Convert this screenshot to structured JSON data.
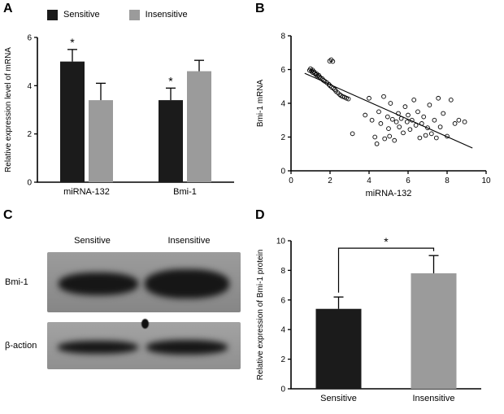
{
  "panels": {
    "a": "A",
    "b": "B",
    "c": "C",
    "d": "D"
  },
  "colors": {
    "sensitive": "#1b1b1b",
    "insensitive": "#9b9b9b",
    "axis": "#000000"
  },
  "blot": {
    "col_labels": [
      "Sensitive",
      "Insensitive"
    ],
    "row_labels": [
      "Bmi-1",
      "β-action"
    ]
  },
  "chart_data": [
    {
      "id": "panelA",
      "type": "bar",
      "title": "",
      "ylabel": "Relative expression level of mRNA",
      "ylim": [
        0,
        6
      ],
      "yticks": [
        0,
        2,
        4,
        6
      ],
      "categories": [
        "miRNA-132",
        "Bmi-1"
      ],
      "legend_position": "top",
      "series": [
        {
          "name": "Sensitive",
          "color": "#1b1b1b",
          "values": [
            5.0,
            3.4
          ],
          "errors": [
            0.5,
            0.5
          ],
          "sig": [
            "*",
            "*"
          ]
        },
        {
          "name": "Insensitive",
          "color": "#9b9b9b",
          "values": [
            3.4,
            4.6
          ],
          "errors": [
            0.7,
            0.45
          ],
          "sig": [
            "",
            ""
          ]
        }
      ]
    },
    {
      "id": "panelB",
      "type": "scatter",
      "xlabel": "miRNA-132",
      "ylabel": "Bmi-1 mRNA",
      "xlim": [
        0,
        10
      ],
      "ylim": [
        0,
        8
      ],
      "xticks": [
        0,
        2,
        4,
        6,
        8,
        10
      ],
      "yticks": [
        0,
        2,
        4,
        6,
        8
      ],
      "marker": "open-circle",
      "trendline": [
        0.7,
        5.78,
        9.3,
        1.35
      ],
      "points": [
        [
          0.95,
          5.95
        ],
        [
          1.0,
          6.05
        ],
        [
          1.05,
          5.9
        ],
        [
          1.1,
          5.97
        ],
        [
          1.12,
          5.82
        ],
        [
          1.18,
          5.87
        ],
        [
          1.22,
          5.78
        ],
        [
          1.27,
          5.7
        ],
        [
          1.32,
          5.74
        ],
        [
          1.36,
          5.62
        ],
        [
          1.42,
          5.66
        ],
        [
          1.47,
          5.56
        ],
        [
          1.52,
          5.5
        ],
        [
          1.6,
          5.46
        ],
        [
          1.66,
          5.36
        ],
        [
          1.74,
          5.3
        ],
        [
          1.84,
          5.22
        ],
        [
          1.94,
          5.12
        ],
        [
          2.0,
          5.04
        ],
        [
          2.08,
          4.96
        ],
        [
          2.16,
          4.9
        ],
        [
          2.24,
          4.82
        ],
        [
          2.3,
          4.72
        ],
        [
          2.4,
          4.62
        ],
        [
          2.5,
          4.52
        ],
        [
          2.56,
          4.46
        ],
        [
          2.64,
          4.4
        ],
        [
          2.74,
          4.36
        ],
        [
          2.84,
          4.3
        ],
        [
          2.94,
          4.26
        ],
        [
          1.98,
          6.5
        ],
        [
          2.06,
          6.58
        ],
        [
          2.14,
          6.48
        ],
        [
          3.15,
          2.2
        ],
        [
          3.8,
          3.3
        ],
        [
          4.0,
          4.3
        ],
        [
          4.15,
          3.0
        ],
        [
          4.3,
          2.0
        ],
        [
          4.4,
          1.6
        ],
        [
          4.5,
          3.5
        ],
        [
          4.6,
          2.8
        ],
        [
          4.75,
          4.4
        ],
        [
          4.8,
          1.9
        ],
        [
          4.95,
          3.2
        ],
        [
          5.0,
          2.5
        ],
        [
          5.05,
          2.05
        ],
        [
          5.1,
          4.0
        ],
        [
          5.2,
          3.05
        ],
        [
          5.3,
          1.8
        ],
        [
          5.4,
          2.9
        ],
        [
          5.5,
          3.4
        ],
        [
          5.55,
          2.6
        ],
        [
          5.65,
          3.1
        ],
        [
          5.75,
          2.25
        ],
        [
          5.85,
          3.8
        ],
        [
          5.95,
          2.9
        ],
        [
          6.0,
          3.3
        ],
        [
          6.1,
          2.45
        ],
        [
          6.2,
          3.0
        ],
        [
          6.3,
          4.2
        ],
        [
          6.4,
          2.7
        ],
        [
          6.5,
          3.5
        ],
        [
          6.6,
          1.95
        ],
        [
          6.7,
          2.8
        ],
        [
          6.8,
          3.2
        ],
        [
          6.9,
          2.1
        ],
        [
          7.0,
          2.55
        ],
        [
          7.1,
          3.9
        ],
        [
          7.2,
          2.2
        ],
        [
          7.35,
          3.0
        ],
        [
          7.45,
          1.95
        ],
        [
          7.55,
          4.3
        ],
        [
          7.65,
          2.6
        ],
        [
          7.8,
          3.4
        ],
        [
          8.0,
          2.05
        ],
        [
          8.2,
          4.2
        ],
        [
          8.4,
          2.8
        ],
        [
          8.6,
          3.0
        ],
        [
          8.9,
          2.9
        ]
      ]
    },
    {
      "id": "panelD",
      "type": "bar",
      "ylabel": "Relative expression of Bmi-1 protein",
      "ylim": [
        0,
        10
      ],
      "yticks": [
        0,
        2,
        4,
        6,
        8,
        10
      ],
      "categories": [
        "Sensitive",
        "Insensitive"
      ],
      "values": [
        5.4,
        7.8
      ],
      "errors": [
        0.8,
        1.2
      ],
      "colors": [
        "#1b1b1b",
        "#9b9b9b"
      ],
      "significance": {
        "label": "*",
        "between": [
          0,
          1
        ],
        "bar_y": 9.5
      }
    }
  ]
}
